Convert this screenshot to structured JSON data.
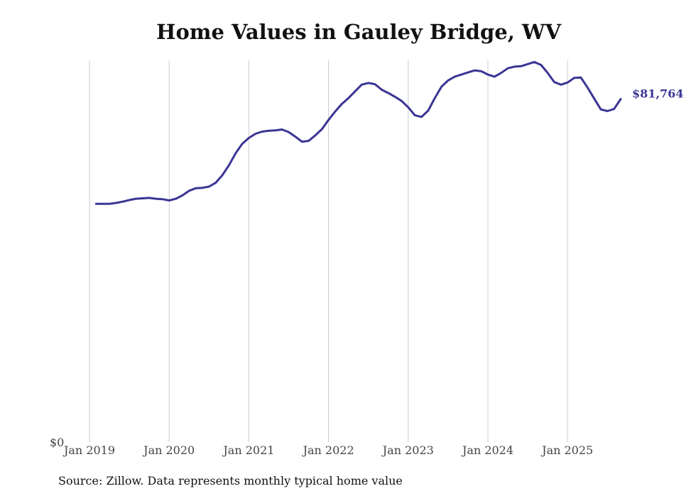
{
  "chart_data": {
    "type": "line",
    "title": "Home Values in Gauley Bridge, WV",
    "source": "Source: Zillow. Data represents monthly typical home value",
    "xlabel": "",
    "ylabel": "",
    "y_axis_label": "$0",
    "x_tick_labels": [
      "Jan 2019",
      "Jan 2020",
      "Jan 2021",
      "Jan 2022",
      "Jan 2023",
      "Jan 2024",
      "Jan 2025"
    ],
    "x_range": [
      "2019-01",
      "2025-12"
    ],
    "ylim": [
      0,
      91000
    ],
    "grid": "vertical",
    "line_color": "#3b3594",
    "end_label": "$81,764",
    "series": [
      {
        "values": [
          {
            "x": "2019-02",
            "y": 56800
          },
          {
            "x": "2019-03",
            "y": 56800
          },
          {
            "x": "2019-04",
            "y": 56800
          },
          {
            "x": "2019-05",
            "y": 57000
          },
          {
            "x": "2019-06",
            "y": 57300
          },
          {
            "x": "2019-07",
            "y": 57700
          },
          {
            "x": "2019-08",
            "y": 58000
          },
          {
            "x": "2019-09",
            "y": 58100
          },
          {
            "x": "2019-10",
            "y": 58200
          },
          {
            "x": "2019-11",
            "y": 58000
          },
          {
            "x": "2019-12",
            "y": 57900
          },
          {
            "x": "2020-01",
            "y": 57600
          },
          {
            "x": "2020-02",
            "y": 58000
          },
          {
            "x": "2020-03",
            "y": 58800
          },
          {
            "x": "2020-04",
            "y": 59900
          },
          {
            "x": "2020-05",
            "y": 60500
          },
          {
            "x": "2020-06",
            "y": 60600
          },
          {
            "x": "2020-07",
            "y": 60900
          },
          {
            "x": "2020-08",
            "y": 61800
          },
          {
            "x": "2020-09",
            "y": 63600
          },
          {
            "x": "2020-10",
            "y": 66000
          },
          {
            "x": "2020-11",
            "y": 68800
          },
          {
            "x": "2020-12",
            "y": 71100
          },
          {
            "x": "2021-01",
            "y": 72500
          },
          {
            "x": "2021-02",
            "y": 73500
          },
          {
            "x": "2021-03",
            "y": 74000
          },
          {
            "x": "2021-04",
            "y": 74200
          },
          {
            "x": "2021-05",
            "y": 74300
          },
          {
            "x": "2021-06",
            "y": 74500
          },
          {
            "x": "2021-07",
            "y": 73900
          },
          {
            "x": "2021-08",
            "y": 72800
          },
          {
            "x": "2021-09",
            "y": 71600
          },
          {
            "x": "2021-10",
            "y": 71800
          },
          {
            "x": "2021-11",
            "y": 73100
          },
          {
            "x": "2021-12",
            "y": 74600
          },
          {
            "x": "2022-01",
            "y": 76800
          },
          {
            "x": "2022-02",
            "y": 78800
          },
          {
            "x": "2022-03",
            "y": 80600
          },
          {
            "x": "2022-04",
            "y": 82000
          },
          {
            "x": "2022-05",
            "y": 83600
          },
          {
            "x": "2022-06",
            "y": 85200
          },
          {
            "x": "2022-07",
            "y": 85600
          },
          {
            "x": "2022-08",
            "y": 85300
          },
          {
            "x": "2022-09",
            "y": 84000
          },
          {
            "x": "2022-10",
            "y": 83200
          },
          {
            "x": "2022-11",
            "y": 82300
          },
          {
            "x": "2022-12",
            "y": 81300
          },
          {
            "x": "2023-01",
            "y": 79800
          },
          {
            "x": "2023-02",
            "y": 77900
          },
          {
            "x": "2023-03",
            "y": 77500
          },
          {
            "x": "2023-04",
            "y": 79000
          },
          {
            "x": "2023-05",
            "y": 82000
          },
          {
            "x": "2023-06",
            "y": 84700
          },
          {
            "x": "2023-07",
            "y": 86200
          },
          {
            "x": "2023-08",
            "y": 87100
          },
          {
            "x": "2023-09",
            "y": 87600
          },
          {
            "x": "2023-10",
            "y": 88100
          },
          {
            "x": "2023-11",
            "y": 88600
          },
          {
            "x": "2023-12",
            "y": 88400
          },
          {
            "x": "2024-01",
            "y": 87600
          },
          {
            "x": "2024-02",
            "y": 87100
          },
          {
            "x": "2024-03",
            "y": 88000
          },
          {
            "x": "2024-04",
            "y": 89100
          },
          {
            "x": "2024-05",
            "y": 89500
          },
          {
            "x": "2024-06",
            "y": 89600
          },
          {
            "x": "2024-07",
            "y": 90100
          },
          {
            "x": "2024-08",
            "y": 90600
          },
          {
            "x": "2024-09",
            "y": 89900
          },
          {
            "x": "2024-10",
            "y": 88000
          },
          {
            "x": "2024-11",
            "y": 85800
          },
          {
            "x": "2024-12",
            "y": 85200
          },
          {
            "x": "2025-01",
            "y": 85700
          },
          {
            "x": "2025-02",
            "y": 86800
          },
          {
            "x": "2025-03",
            "y": 86900
          },
          {
            "x": "2025-04",
            "y": 84500
          },
          {
            "x": "2025-05",
            "y": 81900
          },
          {
            "x": "2025-06",
            "y": 79300
          },
          {
            "x": "2025-07",
            "y": 78900
          },
          {
            "x": "2025-08",
            "y": 79400
          },
          {
            "x": "2025-09",
            "y": 81764
          }
        ]
      }
    ]
  }
}
